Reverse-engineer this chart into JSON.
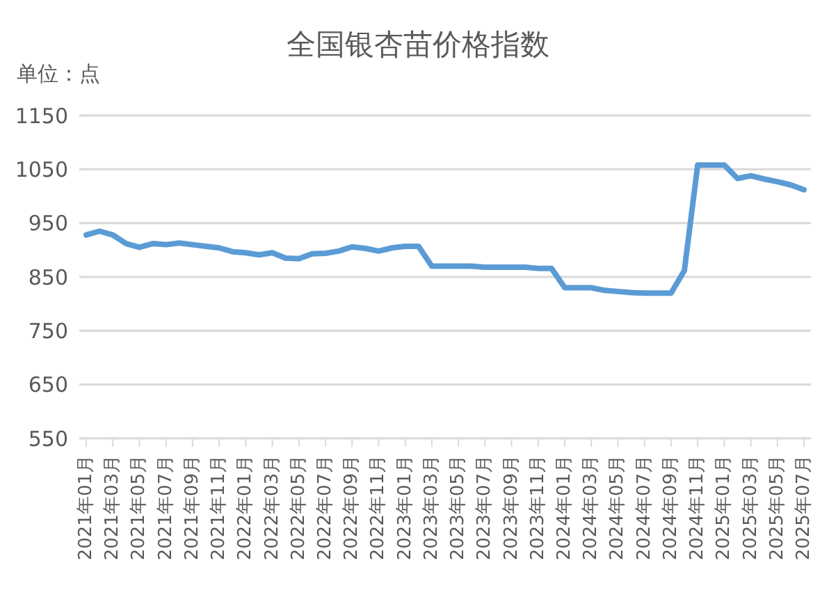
{
  "chart_data": {
    "type": "line",
    "title": "全国银杏苗价格指数",
    "ylabel": "单位：点",
    "categories": [
      "2021年01月",
      null,
      "2021年03月",
      null,
      "2021年05月",
      null,
      "2021年07月",
      null,
      "2021年09月",
      null,
      "2021年11月",
      null,
      "2022年01月",
      null,
      "2022年03月",
      null,
      "2022年05月",
      null,
      "2022年07月",
      null,
      "2022年09月",
      null,
      "2022年11月",
      null,
      "2023年01月",
      null,
      "2023年03月",
      null,
      "2023年05月",
      null,
      "2023年07月",
      null,
      "2023年09月",
      null,
      "2023年11月",
      null,
      "2024年01月",
      null,
      "2024年03月",
      null,
      "2024年05月",
      null,
      "2024年07月",
      null,
      "2024年09月",
      null,
      "2024年11月",
      null,
      "2025年01月",
      null,
      "2025年03月",
      null,
      "2025年05月",
      null,
      "2025年07月"
    ],
    "series": [
      {
        "color": "#5b9bd5",
        "values": [
          928,
          935,
          928,
          912,
          905,
          912,
          910,
          913,
          910,
          907,
          904,
          897,
          895,
          891,
          895,
          885,
          884,
          893,
          894,
          898,
          906,
          903,
          898,
          904,
          907,
          907,
          870,
          870,
          870,
          870,
          868,
          868,
          868,
          868,
          866,
          866,
          830,
          830,
          830,
          825,
          823,
          821,
          820,
          820,
          820,
          862,
          1058,
          1058,
          1058,
          1033,
          1038,
          1032,
          1027,
          1021,
          1012
        ]
      }
    ],
    "ylim": [
      550,
      1150
    ],
    "yticks": [
      550,
      650,
      750,
      850,
      950,
      1050,
      1150
    ],
    "grid": "y",
    "marker": "none",
    "line_style": "solid"
  }
}
